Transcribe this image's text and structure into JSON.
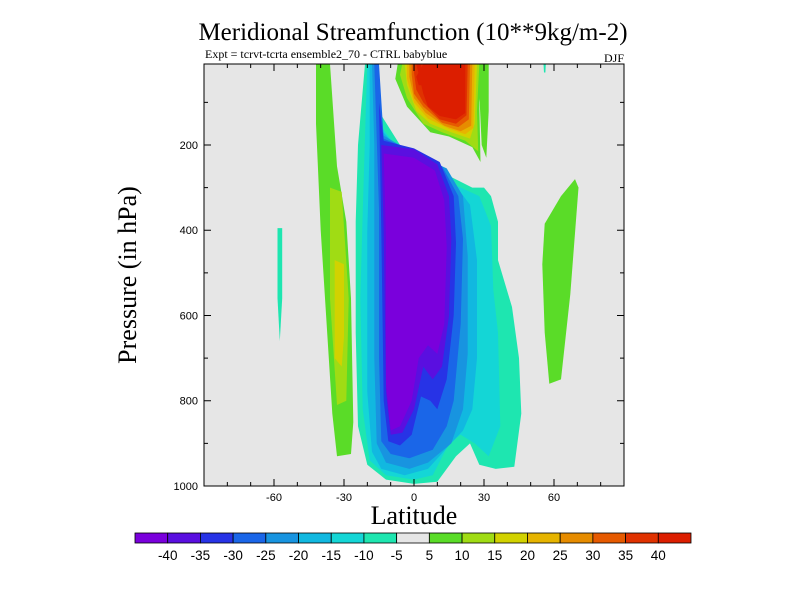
{
  "chart_data": {
    "type": "heatmap",
    "title": "Meridional Streamfunction (10**9kg/m-2)",
    "subtitle": "Expt = tcrvt-tcrta   ensemble2_70 - CTRL babyblue",
    "season": "DJF",
    "xlabel": "Latitude",
    "ylabel": "Pressure (in hPa)",
    "xlim": [
      -90,
      90
    ],
    "ylim": [
      1000,
      10
    ],
    "y_inverted": true,
    "x_ticks": [
      -60,
      -30,
      0,
      30,
      60
    ],
    "x_tick_labels": [
      "-60",
      "-30",
      "0",
      "30",
      "60"
    ],
    "y_ticks": [
      200,
      400,
      600,
      800,
      1000
    ],
    "y_tick_labels": [
      "200",
      "400",
      "600",
      "800",
      "1000"
    ],
    "background_color": "#e6e6e6",
    "colorbar": {
      "levels": [
        -40,
        -35,
        -30,
        -25,
        -20,
        -15,
        -10,
        -5,
        5,
        10,
        15,
        20,
        25,
        30,
        35,
        40
      ],
      "level_labels": [
        "-40",
        "-35",
        "-30",
        "-25",
        "-20",
        "-15",
        "-10",
        "-5",
        "5",
        "10",
        "15",
        "20",
        "25",
        "30",
        "35",
        "40"
      ],
      "colors": [
        "#7a00dc",
        "#5a0fe0",
        "#2733e6",
        "#1a66e8",
        "#1894e0",
        "#11b8e0",
        "#14d6d6",
        "#1ee6b0",
        "#e6e6e6",
        "#5adc28",
        "#a0dc14",
        "#d2d200",
        "#e6b400",
        "#e68c00",
        "#e65a00",
        "#e03200",
        "#dc1e00"
      ]
    },
    "features": [
      {
        "name": "southern cell core",
        "min_value": -40,
        "lat_range": [
          -15,
          18
        ],
        "pressure_range": [
          150,
          900
        ]
      },
      {
        "name": "northern upper cell",
        "max_value": 40,
        "lat_range": [
          0,
          22
        ],
        "pressure_range": [
          10,
          200
        ]
      },
      {
        "name": "southern subtropical band",
        "max_value": 20,
        "lat_range": [
          -40,
          -25
        ],
        "pressure_range": [
          500,
          800
        ]
      },
      {
        "name": "northern midlatitude band",
        "max_value": 10,
        "lat_range": [
          55,
          70
        ],
        "pressure_range": [
          280,
          750
        ]
      }
    ]
  }
}
